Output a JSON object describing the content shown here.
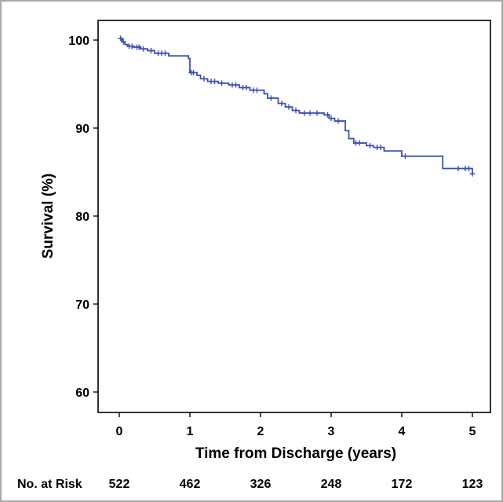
{
  "chart_data": {
    "type": "line",
    "xlabel": "Time from Discharge (years)",
    "ylabel": "Survival (%)",
    "xlim": [
      -0.3,
      5.4
    ],
    "ylim": [
      57.7,
      102.3
    ],
    "x_ticks": [
      "0",
      "1",
      "2",
      "3",
      "4",
      "5"
    ],
    "y_ticks": [
      "100",
      "90",
      "80",
      "70",
      "60"
    ],
    "grid": false,
    "line_color": "#3a50b4",
    "series": [
      {
        "step": [
          [
            0.0,
            100.2
          ],
          [
            0.04,
            99.8
          ],
          [
            0.08,
            99.5
          ],
          [
            0.12,
            99.3
          ],
          [
            0.2,
            99.2
          ],
          [
            0.3,
            99.0
          ],
          [
            0.4,
            98.8
          ],
          [
            0.5,
            98.5
          ],
          [
            0.7,
            98.2
          ],
          [
            0.98,
            97.9
          ],
          [
            1.0,
            96.3
          ],
          [
            1.1,
            96.0
          ],
          [
            1.15,
            95.6
          ],
          [
            1.25,
            95.3
          ],
          [
            1.4,
            95.1
          ],
          [
            1.55,
            94.9
          ],
          [
            1.7,
            94.6
          ],
          [
            1.85,
            94.3
          ],
          [
            2.05,
            93.9
          ],
          [
            2.1,
            93.4
          ],
          [
            2.25,
            92.8
          ],
          [
            2.35,
            92.4
          ],
          [
            2.45,
            92.0
          ],
          [
            2.55,
            91.7
          ],
          [
            2.9,
            91.5
          ],
          [
            2.97,
            91.1
          ],
          [
            3.05,
            90.8
          ],
          [
            3.2,
            89.7
          ],
          [
            3.25,
            88.8
          ],
          [
            3.32,
            88.3
          ],
          [
            3.5,
            88.0
          ],
          [
            3.6,
            87.8
          ],
          [
            3.75,
            87.4
          ],
          [
            4.0,
            86.8
          ],
          [
            4.58,
            85.4
          ],
          [
            5.0,
            84.8
          ]
        ],
        "censor": [
          [
            0.02,
            100.2
          ],
          [
            0.06,
            99.8
          ],
          [
            0.14,
            99.3
          ],
          [
            0.18,
            99.3
          ],
          [
            0.25,
            99.2
          ],
          [
            0.28,
            99.2
          ],
          [
            0.34,
            99.0
          ],
          [
            0.45,
            98.8
          ],
          [
            0.55,
            98.5
          ],
          [
            0.6,
            98.5
          ],
          [
            0.65,
            98.5
          ],
          [
            1.02,
            96.3
          ],
          [
            1.05,
            96.3
          ],
          [
            1.2,
            95.6
          ],
          [
            1.3,
            95.3
          ],
          [
            1.35,
            95.3
          ],
          [
            1.45,
            95.1
          ],
          [
            1.6,
            94.9
          ],
          [
            1.65,
            94.9
          ],
          [
            1.75,
            94.6
          ],
          [
            1.8,
            94.6
          ],
          [
            1.9,
            94.3
          ],
          [
            1.95,
            94.3
          ],
          [
            2.15,
            93.4
          ],
          [
            2.3,
            92.8
          ],
          [
            2.4,
            92.4
          ],
          [
            2.5,
            92.0
          ],
          [
            2.62,
            91.7
          ],
          [
            2.7,
            91.7
          ],
          [
            2.8,
            91.7
          ],
          [
            2.95,
            91.5
          ],
          [
            3.0,
            91.1
          ],
          [
            3.1,
            90.8
          ],
          [
            3.35,
            88.3
          ],
          [
            3.4,
            88.3
          ],
          [
            3.55,
            88.0
          ],
          [
            3.65,
            87.8
          ],
          [
            3.7,
            87.8
          ],
          [
            4.05,
            86.8
          ],
          [
            4.8,
            85.4
          ],
          [
            4.9,
            85.4
          ],
          [
            4.95,
            85.4
          ],
          [
            5.0,
            84.8
          ]
        ]
      }
    ]
  },
  "risk_table": {
    "label": "No. at Risk",
    "values": [
      "522",
      "462",
      "326",
      "248",
      "172",
      "123"
    ]
  }
}
